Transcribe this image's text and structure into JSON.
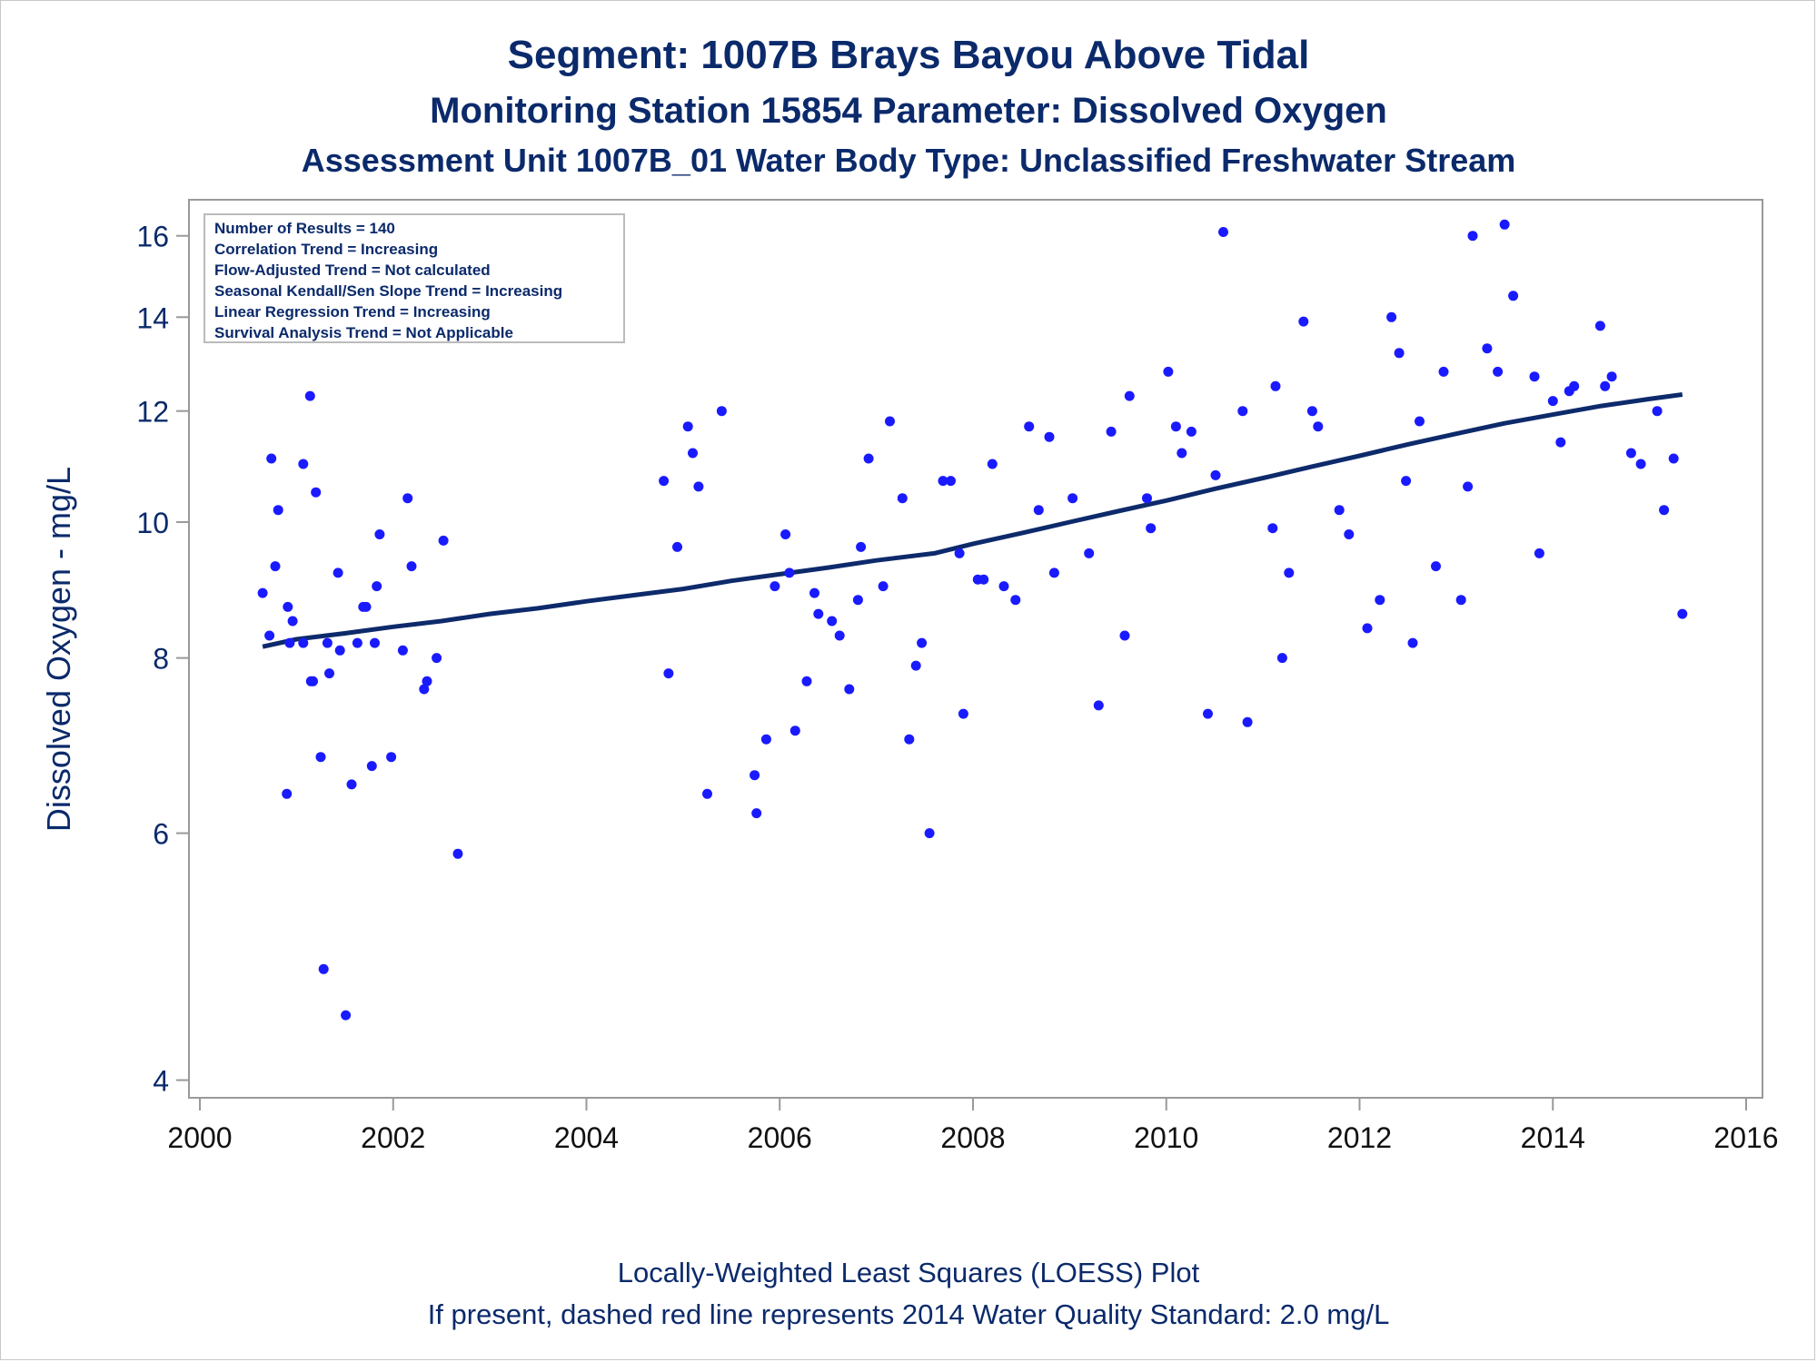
{
  "titles": {
    "line1": "Segment: 1007B  Brays Bayou Above Tidal",
    "line2": "Monitoring Station 15854 Parameter: Dissolved Oxygen",
    "line3": "Assessment Unit 1007B_01   Water Body Type: Unclassified Freshwater Stream"
  },
  "footnotes": {
    "line1": "Locally-Weighted Least Squares (LOESS) Plot",
    "line2": "If present, dashed red line represents 2014 Water Quality Standard: 2.0 mg/L"
  },
  "colors": {
    "text": "#0b2a6b",
    "points": "#1a1aff",
    "line": "#0d2a6b",
    "axis": "#999999"
  },
  "chart_data": {
    "type": "scatter",
    "ylabel": "Dissolved Oxygen - mg/L",
    "xlabel": "",
    "yscale": "log",
    "xlim": [
      2000,
      2016
    ],
    "ylim": [
      3.95,
      16.8
    ],
    "x_ticks": [
      "2000",
      "2002",
      "2004",
      "2006",
      "2008",
      "2010",
      "2012",
      "2014",
      "2016"
    ],
    "y_ticks": [
      "4",
      "6",
      "8",
      "10",
      "12",
      "14",
      "16"
    ],
    "legend_position": "top-left",
    "stats_box": [
      "Number of Results = 140",
      "Correlation Trend = Increasing",
      "Flow-Adjusted Trend = Not calculated",
      "Seasonal Kendall/Sen Slope Trend = Increasing",
      "Linear Regression Trend = Increasing",
      "Survival Analysis Trend = Not Applicable"
    ],
    "points": [
      [
        2000.65,
        8.9
      ],
      [
        2000.72,
        8.3
      ],
      [
        2000.74,
        11.1
      ],
      [
        2000.78,
        9.3
      ],
      [
        2000.81,
        10.2
      ],
      [
        2000.9,
        6.4
      ],
      [
        2000.91,
        8.7
      ],
      [
        2000.93,
        8.2
      ],
      [
        2000.96,
        8.5
      ],
      [
        2001.07,
        8.2
      ],
      [
        2001.07,
        11.0
      ],
      [
        2001.14,
        12.3
      ],
      [
        2001.15,
        7.7
      ],
      [
        2001.17,
        7.7
      ],
      [
        2001.2,
        10.5
      ],
      [
        2001.25,
        6.8
      ],
      [
        2001.28,
        4.8
      ],
      [
        2001.32,
        8.2
      ],
      [
        2001.34,
        7.8
      ],
      [
        2001.43,
        9.2
      ],
      [
        2001.45,
        8.1
      ],
      [
        2001.51,
        4.45
      ],
      [
        2001.57,
        6.5
      ],
      [
        2001.63,
        8.2
      ],
      [
        2001.69,
        8.7
      ],
      [
        2001.72,
        8.7
      ],
      [
        2001.78,
        6.7
      ],
      [
        2001.81,
        8.2
      ],
      [
        2001.83,
        9.0
      ],
      [
        2001.86,
        9.8
      ],
      [
        2001.98,
        6.8
      ],
      [
        2002.1,
        8.1
      ],
      [
        2002.15,
        10.4
      ],
      [
        2002.19,
        9.3
      ],
      [
        2002.32,
        7.6
      ],
      [
        2002.35,
        7.7
      ],
      [
        2002.45,
        8.0
      ],
      [
        2002.52,
        9.7
      ],
      [
        2002.67,
        5.8
      ],
      [
        2004.8,
        10.7
      ],
      [
        2004.85,
        7.8
      ],
      [
        2004.94,
        9.6
      ],
      [
        2005.05,
        11.7
      ],
      [
        2005.1,
        11.2
      ],
      [
        2005.16,
        10.6
      ],
      [
        2005.25,
        6.4
      ],
      [
        2005.4,
        12.0
      ],
      [
        2005.74,
        6.6
      ],
      [
        2005.76,
        6.2
      ],
      [
        2005.86,
        7.0
      ],
      [
        2005.95,
        9.0
      ],
      [
        2006.06,
        9.8
      ],
      [
        2006.1,
        9.2
      ],
      [
        2006.16,
        7.1
      ],
      [
        2006.28,
        7.7
      ],
      [
        2006.36,
        8.9
      ],
      [
        2006.4,
        8.6
      ],
      [
        2006.54,
        8.5
      ],
      [
        2006.62,
        8.3
      ],
      [
        2006.72,
        7.6
      ],
      [
        2006.81,
        8.8
      ],
      [
        2006.84,
        9.6
      ],
      [
        2006.92,
        11.1
      ],
      [
        2007.07,
        9.0
      ],
      [
        2007.14,
        11.8
      ],
      [
        2007.27,
        10.4
      ],
      [
        2007.34,
        7.0
      ],
      [
        2007.41,
        7.9
      ],
      [
        2007.47,
        8.2
      ],
      [
        2007.55,
        6.0
      ],
      [
        2007.69,
        10.7
      ],
      [
        2007.77,
        10.7
      ],
      [
        2007.86,
        9.5
      ],
      [
        2007.9,
        7.3
      ],
      [
        2008.05,
        9.1
      ],
      [
        2008.11,
        9.1
      ],
      [
        2008.2,
        11.0
      ],
      [
        2008.32,
        9.0
      ],
      [
        2008.44,
        8.8
      ],
      [
        2008.58,
        11.7
      ],
      [
        2008.68,
        10.2
      ],
      [
        2008.79,
        11.5
      ],
      [
        2008.84,
        9.2
      ],
      [
        2009.03,
        10.4
      ],
      [
        2009.2,
        9.5
      ],
      [
        2009.3,
        7.4
      ],
      [
        2009.43,
        11.6
      ],
      [
        2009.57,
        8.3
      ],
      [
        2009.62,
        12.3
      ],
      [
        2009.8,
        10.4
      ],
      [
        2009.84,
        9.9
      ],
      [
        2010.02,
        12.8
      ],
      [
        2010.1,
        11.7
      ],
      [
        2010.16,
        11.2
      ],
      [
        2010.26,
        11.6
      ],
      [
        2010.43,
        7.3
      ],
      [
        2010.51,
        10.8
      ],
      [
        2010.59,
        16.1
      ],
      [
        2010.79,
        12.0
      ],
      [
        2010.84,
        7.2
      ],
      [
        2011.1,
        9.9
      ],
      [
        2011.13,
        12.5
      ],
      [
        2011.2,
        8.0
      ],
      [
        2011.27,
        9.2
      ],
      [
        2011.42,
        13.9
      ],
      [
        2011.51,
        12.0
      ],
      [
        2011.57,
        11.7
      ],
      [
        2011.79,
        10.2
      ],
      [
        2011.89,
        9.8
      ],
      [
        2012.08,
        8.4
      ],
      [
        2012.21,
        8.8
      ],
      [
        2012.33,
        14.0
      ],
      [
        2012.41,
        13.2
      ],
      [
        2012.48,
        10.7
      ],
      [
        2012.55,
        8.2
      ],
      [
        2012.62,
        11.8
      ],
      [
        2012.79,
        9.3
      ],
      [
        2012.87,
        12.8
      ],
      [
        2013.05,
        8.8
      ],
      [
        2013.12,
        10.6
      ],
      [
        2013.17,
        16.0
      ],
      [
        2013.32,
        13.3
      ],
      [
        2013.43,
        12.8
      ],
      [
        2013.5,
        16.3
      ],
      [
        2013.59,
        14.5
      ],
      [
        2013.81,
        12.7
      ],
      [
        2013.86,
        9.5
      ],
      [
        2014.0,
        12.2
      ],
      [
        2014.08,
        11.4
      ],
      [
        2014.17,
        12.4
      ],
      [
        2014.22,
        12.5
      ],
      [
        2014.49,
        13.8
      ],
      [
        2014.54,
        12.5
      ],
      [
        2014.61,
        12.7
      ],
      [
        2014.81,
        11.2
      ],
      [
        2014.91,
        11.0
      ],
      [
        2015.08,
        12.0
      ],
      [
        2015.15,
        10.2
      ],
      [
        2015.25,
        11.1
      ],
      [
        2015.34,
        8.6
      ]
    ],
    "loess_line": [
      [
        2000.65,
        8.15
      ],
      [
        2001.0,
        8.25
      ],
      [
        2001.5,
        8.33
      ],
      [
        2002.0,
        8.42
      ],
      [
        2002.5,
        8.5
      ],
      [
        2003.0,
        8.6
      ],
      [
        2003.5,
        8.68
      ],
      [
        2004.0,
        8.78
      ],
      [
        2004.5,
        8.87
      ],
      [
        2005.0,
        8.96
      ],
      [
        2005.5,
        9.08
      ],
      [
        2006.0,
        9.18
      ],
      [
        2006.5,
        9.28
      ],
      [
        2007.0,
        9.39
      ],
      [
        2007.6,
        9.5
      ],
      [
        2008.0,
        9.65
      ],
      [
        2008.5,
        9.82
      ],
      [
        2009.0,
        10.0
      ],
      [
        2009.5,
        10.18
      ],
      [
        2010.0,
        10.36
      ],
      [
        2010.5,
        10.56
      ],
      [
        2011.0,
        10.75
      ],
      [
        2011.5,
        10.95
      ],
      [
        2012.0,
        11.15
      ],
      [
        2012.5,
        11.36
      ],
      [
        2013.0,
        11.56
      ],
      [
        2013.5,
        11.76
      ],
      [
        2014.0,
        11.93
      ],
      [
        2014.5,
        12.1
      ],
      [
        2015.0,
        12.24
      ],
      [
        2015.34,
        12.33
      ]
    ]
  }
}
